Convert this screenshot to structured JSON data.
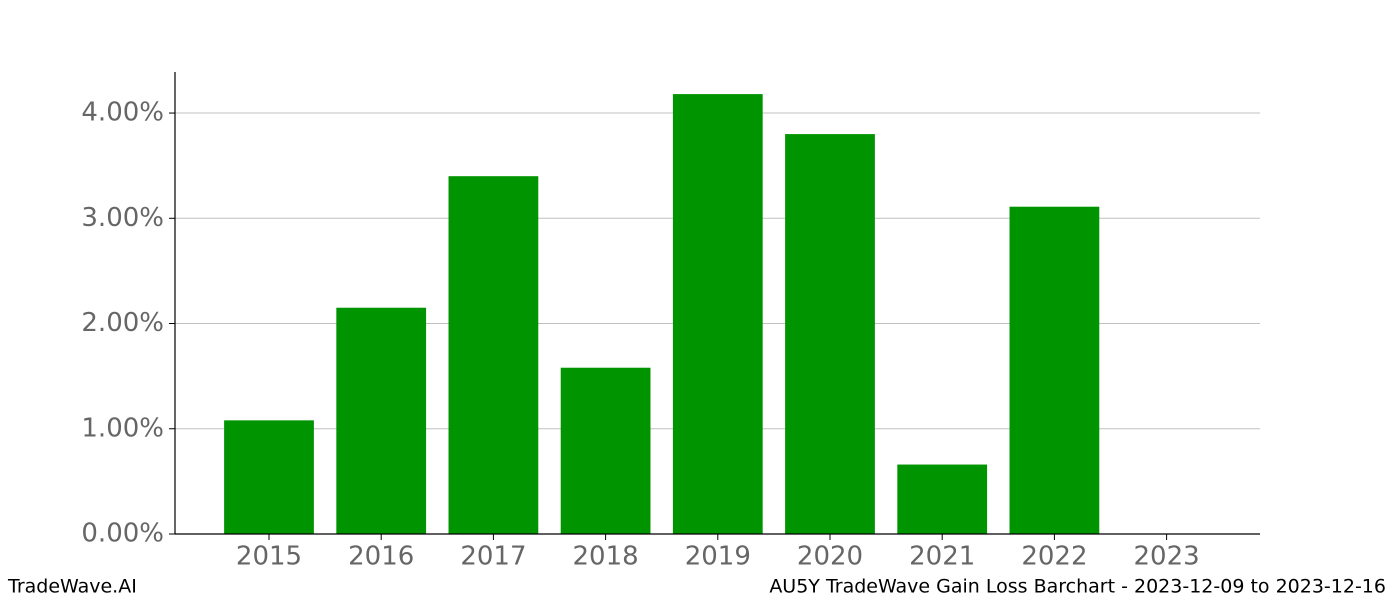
{
  "chart_data": {
    "type": "bar",
    "categories": [
      "2015",
      "2016",
      "2017",
      "2018",
      "2019",
      "2020",
      "2021",
      "2022",
      "2023"
    ],
    "values": [
      1.08,
      2.15,
      3.4,
      1.58,
      4.18,
      3.8,
      0.66,
      3.11,
      0
    ],
    "color": "#009400",
    "ylim": [
      0,
      4.39
    ],
    "yticks": [
      {
        "value": 0,
        "label": "0.00%"
      },
      {
        "value": 1,
        "label": "1.00%"
      },
      {
        "value": 2,
        "label": "2.00%"
      },
      {
        "value": 3,
        "label": "3.00%"
      },
      {
        "value": 4,
        "label": "4.00%"
      }
    ],
    "grid": true,
    "footer_left": "TradeWave.AI",
    "footer_right": "AU5Y TradeWave Gain Loss Barchart - 2023-12-09 to 2023-12-16"
  }
}
